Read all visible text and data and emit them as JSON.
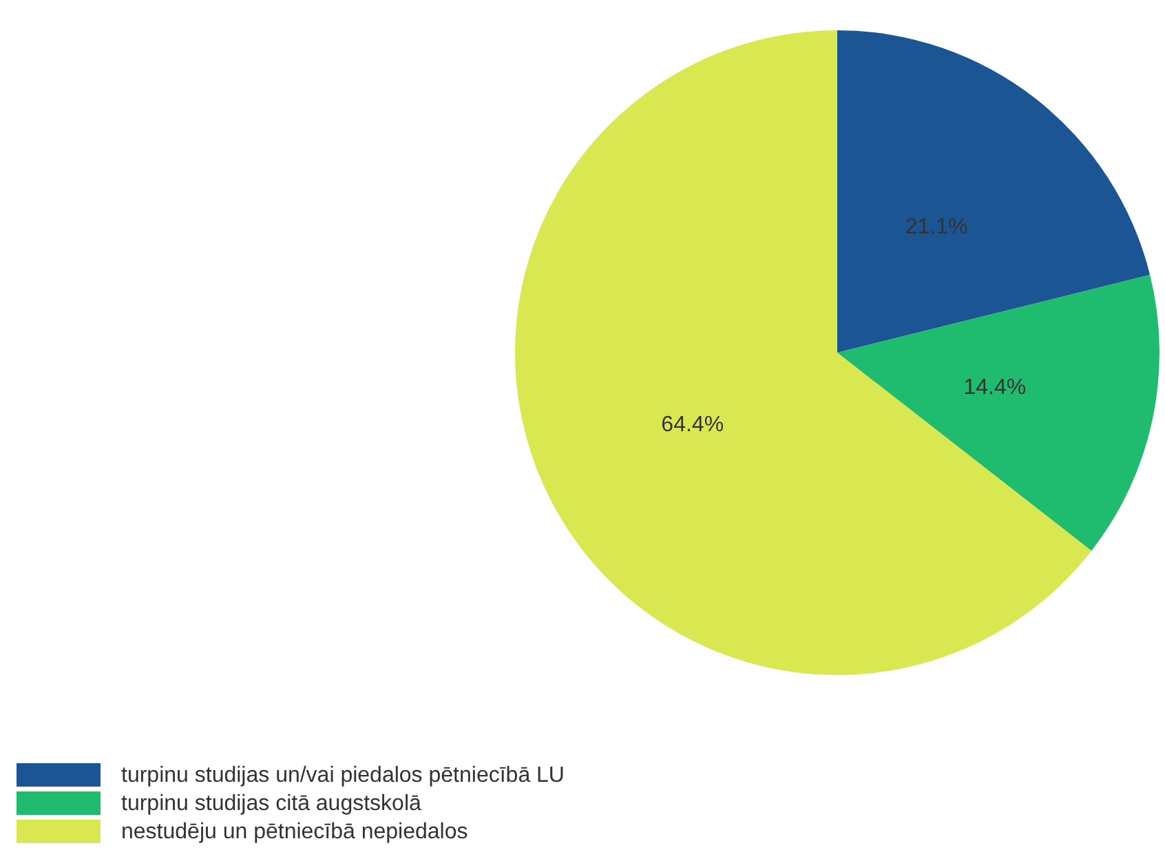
{
  "chart_data": {
    "type": "pie",
    "categories": [
      "turpinu studijas un/vai piedalos pētniecībā LU",
      "turpinu studijas citā augstskolā",
      "nestudēju un pētniecībā nepiedalos"
    ],
    "values": [
      21.1,
      14.4,
      64.4
    ],
    "colors": [
      "#1c5594",
      "#1fbb6e",
      "#d9e851"
    ],
    "value_labels": [
      "21.1%",
      "14.4%",
      "64.4%"
    ],
    "legend": "bottom left"
  }
}
